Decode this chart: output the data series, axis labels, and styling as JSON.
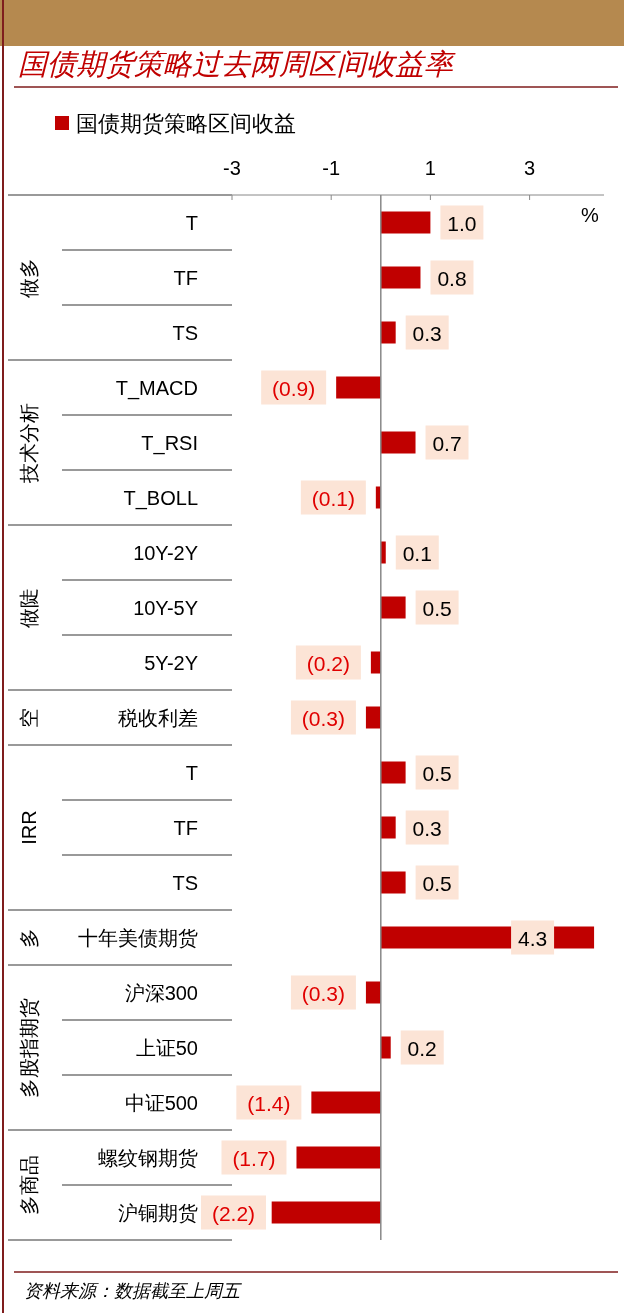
{
  "chart_data": {
    "type": "bar",
    "orientation": "horizontal",
    "title": "国债期货策略过去两周区间收益率",
    "xlabel": "%",
    "categories": [
      "T",
      "TF",
      "TS",
      "T_MACD",
      "T_RSI",
      "T_BOLL",
      "10Y-2Y",
      "10Y-5Y",
      "5Y-2Y",
      "税收利差",
      "T",
      "TF",
      "TS",
      "十年美债期货",
      "沪深300",
      "上证50",
      "中证500",
      "螺纹钢期货",
      "沪铜期货"
    ],
    "series": [
      {
        "name": "国债期货策略区间收益",
        "color": "#c00000",
        "values": [
          1.0,
          0.8,
          0.3,
          -0.9,
          0.7,
          -0.1,
          0.1,
          0.5,
          -0.2,
          -0.3,
          0.5,
          0.3,
          0.5,
          4.3,
          -0.3,
          0.2,
          -1.4,
          -1.7,
          -2.2
        ],
        "value_labels": [
          "1.0",
          "0.8",
          "0.3",
          "(0.9)",
          "0.7",
          "(0.1)",
          "0.1",
          "0.5",
          "(0.2)",
          "(0.3)",
          "0.5",
          "0.3",
          "0.5",
          "4.3",
          "(0.3)",
          "0.2",
          "(1.4)",
          "(1.7)",
          "(2.2)"
        ]
      }
    ],
    "xlim": [
      -3,
      4.5
    ],
    "xticks": [
      -3,
      -1,
      1,
      3
    ],
    "legend": "top left",
    "grid": false,
    "annotations": [
      "做多",
      "技术分析",
      "做陡",
      "空",
      "IRR",
      "多",
      "多股指期货",
      "多商品",
      "资料来源：数据截至上周五"
    ]
  }
}
